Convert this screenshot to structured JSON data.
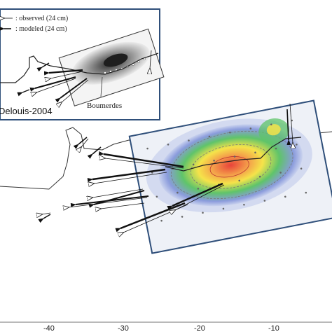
{
  "legend": {
    "observed_label": ": observed (24 cm)",
    "modeled_label": ": modeled (24 cm)"
  },
  "inset": {
    "title": "Delouis-2004",
    "place_label": "Boumerdes"
  },
  "x_axis": {
    "tick_labels": [
      "-40",
      "-30",
      "-20",
      "-10"
    ]
  },
  "colors": {
    "slip_high": "#e8423a",
    "slip_mid": "#f5e34a",
    "slip_low": "#5fc46a",
    "slip_base": "#8a9bdc",
    "observed_arrow": "#ffffff",
    "modeled_arrow": "#111111",
    "frame": "#2f4f7a"
  }
}
